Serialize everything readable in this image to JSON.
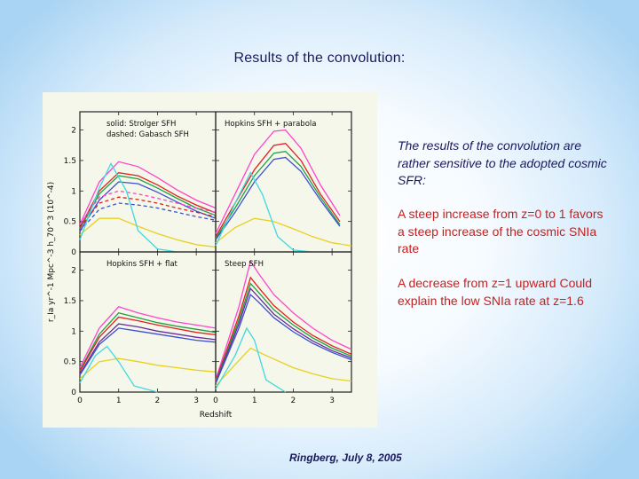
{
  "slide": {
    "title": "Results of the convolution:",
    "footer": "Ringberg, July 8, 2005"
  },
  "text": {
    "intro": "The results of the convolution are rather sensitive to the adopted cosmic SFR:",
    "point1": "A steep increase from z=0 to 1 favors a steep increase of the cosmic SNIa rate",
    "point2": "A decrease from z=1 upward Could explain the low SNIa rate at z=1.6"
  },
  "colors": {
    "title_text": "#1a1a5c",
    "highlight_text": "#c81e1e",
    "figure_background": "#f4f7ea"
  },
  "figure": {
    "xlabel": "Redshift",
    "ylabel": "r_Ia yr^-1 Mpc^-3 h_70^3 (10^-4)",
    "x_ticks": [
      "0",
      "1",
      "2",
      "3"
    ],
    "y_ticks": [
      "0",
      "0.5",
      "1",
      "1.5",
      "2"
    ],
    "panels": [
      {
        "key": "tl",
        "label_lines": [
          "solid: Strolger SFH",
          "dashed: Gabasch SFH"
        ]
      },
      {
        "key": "tr",
        "label_lines": [
          "Hopkins SFH + parabola"
        ]
      },
      {
        "key": "bl",
        "label_lines": [
          "Hopkins SFH + flat"
        ]
      },
      {
        "key": "br",
        "label_lines": [
          "Steep SFH"
        ]
      }
    ],
    "series_colors": [
      "#ff44cc",
      "#e02020",
      "#20a040",
      "#6a2aa0",
      "#3a50d0",
      "#e8d020",
      "#40d8e0"
    ]
  },
  "chart_data": [
    {
      "type": "line",
      "panel": "solid: Strolger SFH / dashed: Gabasch SFH",
      "xlabel": "",
      "ylabel": "r_Ia yr^-1 Mpc^-3 h_70^3 (10^-4)",
      "xlim": [
        0,
        3.5
      ],
      "ylim": [
        0,
        2.3
      ],
      "series": [
        {
          "color": "#ff44cc",
          "style": "solid",
          "x": [
            0,
            0.5,
            1,
            1.5,
            2,
            2.5,
            3,
            3.5
          ],
          "y": [
            0.45,
            1.15,
            1.48,
            1.4,
            1.22,
            1.02,
            0.85,
            0.72
          ]
        },
        {
          "color": "#e02020",
          "style": "solid",
          "x": [
            0,
            0.5,
            1,
            1.5,
            2,
            2.5,
            3,
            3.5
          ],
          "y": [
            0.4,
            1.0,
            1.3,
            1.25,
            1.1,
            0.92,
            0.77,
            0.64
          ]
        },
        {
          "color": "#20a040",
          "style": "solid",
          "x": [
            0,
            0.5,
            1,
            1.5,
            2,
            2.5,
            3,
            3.5
          ],
          "y": [
            0.38,
            0.95,
            1.25,
            1.2,
            1.05,
            0.88,
            0.72,
            0.6
          ]
        },
        {
          "color": "#3a50d0",
          "style": "solid",
          "x": [
            0,
            0.5,
            1,
            1.5,
            2,
            2.5,
            3,
            3.5
          ],
          "y": [
            0.34,
            0.85,
            1.15,
            1.12,
            0.98,
            0.82,
            0.67,
            0.55
          ]
        },
        {
          "color": "#ff44cc",
          "style": "dashed",
          "x": [
            0,
            0.5,
            1,
            1.5,
            2,
            2.5,
            3,
            3.5
          ],
          "y": [
            0.45,
            0.9,
            1.0,
            0.95,
            0.88,
            0.8,
            0.72,
            0.65
          ]
        },
        {
          "color": "#e02020",
          "style": "dashed",
          "x": [
            0,
            0.5,
            1,
            1.5,
            2,
            2.5,
            3,
            3.5
          ],
          "y": [
            0.4,
            0.8,
            0.9,
            0.86,
            0.8,
            0.72,
            0.65,
            0.58
          ]
        },
        {
          "color": "#3a50d0",
          "style": "dashed",
          "x": [
            0,
            0.5,
            1,
            1.5,
            2,
            2.5,
            3,
            3.5
          ],
          "y": [
            0.34,
            0.7,
            0.8,
            0.77,
            0.72,
            0.65,
            0.58,
            0.52
          ]
        },
        {
          "color": "#e8d020",
          "style": "solid",
          "x": [
            0,
            0.5,
            1,
            1.5,
            2,
            2.5,
            3,
            3.5
          ],
          "y": [
            0.28,
            0.55,
            0.55,
            0.42,
            0.3,
            0.2,
            0.12,
            0.08
          ]
        },
        {
          "color": "#40d8e0",
          "style": "solid",
          "x": [
            0,
            0.5,
            0.8,
            1.2,
            1.5,
            2,
            2.5
          ],
          "y": [
            0.2,
            1.05,
            1.45,
            1.0,
            0.35,
            0.05,
            0
          ]
        }
      ]
    },
    {
      "type": "line",
      "panel": "Hopkins SFH + parabola",
      "xlim": [
        0,
        3.5
      ],
      "ylim": [
        0,
        2.3
      ],
      "series": [
        {
          "color": "#ff44cc",
          "x": [
            0,
            0.5,
            1,
            1.5,
            1.8,
            2.2,
            2.7,
            3.2
          ],
          "y": [
            0.3,
            0.95,
            1.6,
            1.98,
            2.0,
            1.7,
            1.1,
            0.6
          ]
        },
        {
          "color": "#e02020",
          "x": [
            0,
            0.5,
            1,
            1.5,
            1.8,
            2.2,
            2.7,
            3.2
          ],
          "y": [
            0.25,
            0.8,
            1.35,
            1.75,
            1.78,
            1.5,
            0.95,
            0.5
          ]
        },
        {
          "color": "#20a040",
          "x": [
            0,
            0.5,
            1,
            1.5,
            1.8,
            2.2,
            2.7,
            3.2
          ],
          "y": [
            0.22,
            0.72,
            1.25,
            1.62,
            1.65,
            1.4,
            0.9,
            0.45
          ]
        },
        {
          "color": "#3a50d0",
          "x": [
            0,
            0.5,
            1,
            1.5,
            1.8,
            2.2,
            2.7,
            3.2
          ],
          "y": [
            0.2,
            0.65,
            1.15,
            1.52,
            1.55,
            1.32,
            0.85,
            0.42
          ]
        },
        {
          "color": "#e8d020",
          "x": [
            0,
            0.5,
            1,
            1.5,
            2,
            2.5,
            3,
            3.5
          ],
          "y": [
            0.15,
            0.4,
            0.55,
            0.5,
            0.38,
            0.25,
            0.15,
            0.1
          ]
        },
        {
          "color": "#40d8e0",
          "x": [
            0,
            0.5,
            0.9,
            1.2,
            1.6,
            2,
            2.5
          ],
          "y": [
            0.1,
            0.8,
            1.3,
            0.95,
            0.25,
            0.03,
            0
          ]
        }
      ]
    },
    {
      "type": "line",
      "panel": "Hopkins SFH + flat",
      "xlim": [
        0,
        3.5
      ],
      "ylim": [
        0,
        2.3
      ],
      "series": [
        {
          "color": "#ff44cc",
          "x": [
            0,
            0.5,
            1,
            1.5,
            2,
            2.5,
            3,
            3.5
          ],
          "y": [
            0.4,
            1.05,
            1.4,
            1.3,
            1.22,
            1.15,
            1.1,
            1.05
          ]
        },
        {
          "color": "#20a040",
          "x": [
            0,
            0.5,
            1,
            1.5,
            2,
            2.5,
            3,
            3.5
          ],
          "y": [
            0.36,
            0.95,
            1.3,
            1.22,
            1.14,
            1.08,
            1.03,
            0.98
          ]
        },
        {
          "color": "#e02020",
          "x": [
            0,
            0.5,
            1,
            1.5,
            2,
            2.5,
            3,
            3.5
          ],
          "y": [
            0.34,
            0.9,
            1.23,
            1.17,
            1.1,
            1.04,
            0.98,
            0.94
          ]
        },
        {
          "color": "#6a2aa0",
          "x": [
            0,
            0.5,
            1,
            1.5,
            2,
            2.5,
            3,
            3.5
          ],
          "y": [
            0.3,
            0.82,
            1.12,
            1.07,
            1.0,
            0.95,
            0.9,
            0.86
          ]
        },
        {
          "color": "#3a50d0",
          "x": [
            0,
            0.5,
            1,
            1.5,
            2,
            2.5,
            3,
            3.5
          ],
          "y": [
            0.28,
            0.78,
            1.05,
            1.0,
            0.95,
            0.9,
            0.85,
            0.82
          ]
        },
        {
          "color": "#e8d020",
          "x": [
            0,
            0.5,
            1,
            1.5,
            2,
            2.5,
            3,
            3.5
          ],
          "y": [
            0.22,
            0.5,
            0.55,
            0.5,
            0.44,
            0.4,
            0.36,
            0.33
          ]
        },
        {
          "color": "#40d8e0",
          "x": [
            0,
            0.4,
            0.7,
            1.0,
            1.4,
            2
          ],
          "y": [
            0.15,
            0.6,
            0.75,
            0.5,
            0.1,
            0
          ]
        }
      ]
    },
    {
      "type": "line",
      "panel": "Steep SFH",
      "xlim": [
        0,
        3.5
      ],
      "ylim": [
        0,
        2.3
      ],
      "series": [
        {
          "color": "#ff44cc",
          "x": [
            0,
            0.6,
            0.9,
            1.1,
            1.5,
            2,
            2.5,
            3,
            3.5
          ],
          "y": [
            0.2,
            1.4,
            2.15,
            1.95,
            1.6,
            1.3,
            1.05,
            0.85,
            0.7
          ]
        },
        {
          "color": "#e02020",
          "x": [
            0,
            0.6,
            0.9,
            1.1,
            1.5,
            2,
            2.5,
            3,
            3.5
          ],
          "y": [
            0.18,
            1.25,
            1.88,
            1.72,
            1.42,
            1.15,
            0.93,
            0.76,
            0.62
          ]
        },
        {
          "color": "#20a040",
          "x": [
            0,
            0.6,
            0.9,
            1.1,
            1.5,
            2,
            2.5,
            3,
            3.5
          ],
          "y": [
            0.16,
            1.18,
            1.78,
            1.64,
            1.35,
            1.1,
            0.89,
            0.72,
            0.59
          ]
        },
        {
          "color": "#6a2aa0",
          "x": [
            0,
            0.6,
            0.9,
            1.1,
            1.5,
            2,
            2.5,
            3,
            3.5
          ],
          "y": [
            0.15,
            1.12,
            1.7,
            1.56,
            1.28,
            1.04,
            0.84,
            0.68,
            0.56
          ]
        },
        {
          "color": "#3a50d0",
          "x": [
            0,
            0.6,
            0.9,
            1.1,
            1.5,
            2,
            2.5,
            3,
            3.5
          ],
          "y": [
            0.14,
            1.05,
            1.6,
            1.48,
            1.22,
            0.99,
            0.8,
            0.65,
            0.53
          ]
        },
        {
          "color": "#e8d020",
          "x": [
            0,
            0.5,
            0.9,
            1.3,
            2,
            2.5,
            3,
            3.5
          ],
          "y": [
            0.1,
            0.45,
            0.72,
            0.6,
            0.4,
            0.3,
            0.22,
            0.18
          ]
        },
        {
          "color": "#40d8e0",
          "x": [
            0,
            0.5,
            0.8,
            1.0,
            1.3,
            1.8
          ],
          "y": [
            0.05,
            0.6,
            1.05,
            0.85,
            0.2,
            0
          ]
        }
      ]
    }
  ]
}
